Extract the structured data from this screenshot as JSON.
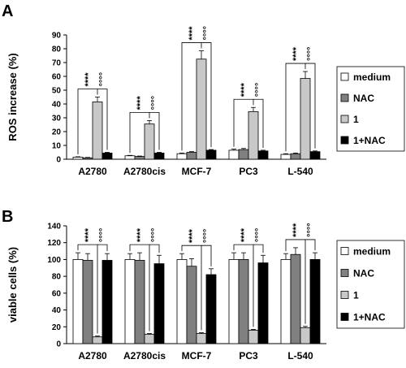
{
  "chart_data": [
    {
      "panel_label": "A",
      "type": "bar",
      "ylabel": "ROS increase (%)",
      "ylim": [
        0,
        90
      ],
      "yticks": [
        0,
        10,
        20,
        30,
        40,
        50,
        60,
        70,
        80,
        90
      ],
      "grid": false,
      "legend_position": "right",
      "categories": [
        "A2780",
        "A2780cis",
        "MCF-7",
        "PC3",
        "L-540"
      ],
      "series": [
        {
          "name": "medium",
          "color": "#ffffff",
          "values": [
            1.5,
            2.5,
            4,
            6.5,
            3.5
          ],
          "errors": [
            0.3,
            0.3,
            0.5,
            0.8,
            0.5
          ]
        },
        {
          "name": "NAC",
          "color": "#808080",
          "values": [
            1,
            2,
            5,
            7,
            4
          ],
          "errors": [
            0.3,
            0.3,
            0.5,
            0.8,
            0.5
          ]
        },
        {
          "name": "1",
          "color": "#c8c8c8",
          "values": [
            41.5,
            25.5,
            72.5,
            34.5,
            58.5
          ],
          "errors": [
            3.5,
            2.5,
            6,
            3,
            5
          ]
        },
        {
          "name": "1+NAC",
          "color": "#000000",
          "values": [
            4.5,
            4.5,
            6.5,
            6,
            5.5
          ],
          "errors": [
            0.5,
            0.5,
            0.5,
            0.5,
            0.5
          ]
        }
      ],
      "significance": {
        "star_label": "****",
        "circle_label": "°°°°"
      }
    },
    {
      "panel_label": "B",
      "type": "bar",
      "ylabel": "viable cells (%)",
      "ylim": [
        0,
        140
      ],
      "yticks": [
        0,
        20,
        40,
        60,
        80,
        100,
        120,
        140
      ],
      "grid": false,
      "legend_position": "right",
      "categories": [
        "A2780",
        "A2780cis",
        "MCF-7",
        "PC3",
        "L-540"
      ],
      "series": [
        {
          "name": "medium",
          "color": "#ffffff",
          "values": [
            100,
            100,
            100,
            100,
            100
          ],
          "errors": [
            8,
            7,
            7,
            8,
            7
          ]
        },
        {
          "name": "NAC",
          "color": "#808080",
          "values": [
            99,
            99,
            92,
            100,
            106
          ],
          "errors": [
            8,
            9,
            9,
            8,
            8
          ]
        },
        {
          "name": "1",
          "color": "#c8c8c8",
          "values": [
            8,
            11,
            12,
            16,
            19
          ],
          "errors": [
            1,
            1,
            1,
            1,
            1.5
          ]
        },
        {
          "name": "1+NAC",
          "color": "#000000",
          "values": [
            99,
            95,
            82,
            96,
            100
          ],
          "errors": [
            8,
            10,
            7,
            9,
            8
          ]
        }
      ],
      "significance": {
        "star_label": "****",
        "circle_label": "°°°°"
      }
    }
  ]
}
